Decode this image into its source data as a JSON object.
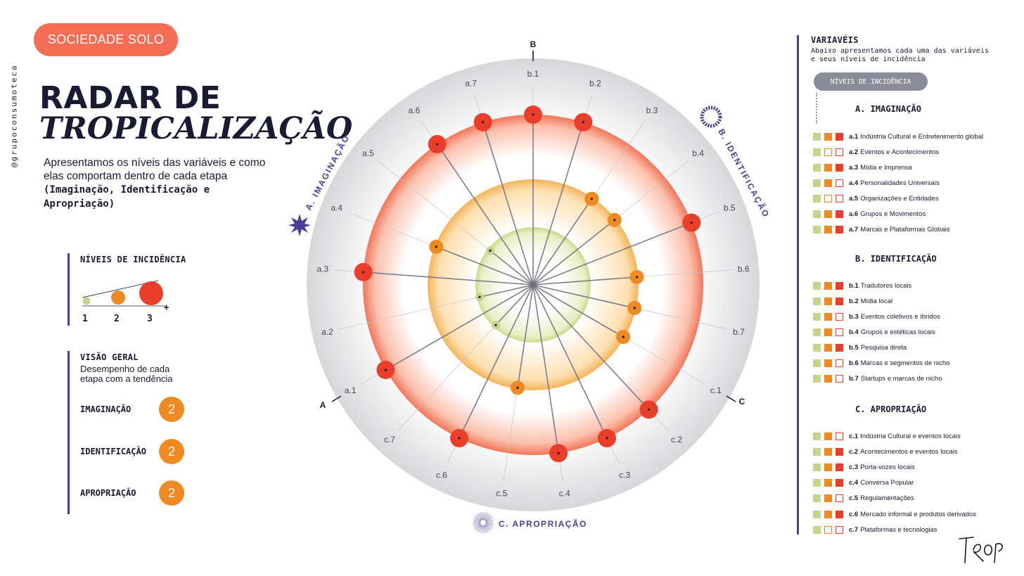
{
  "brand": "SOCIEDADE SOLO",
  "handle": "@grupoconsumoteca",
  "title_line1": "RADAR DE",
  "title_line2": "TROPICALIZAÇÃO",
  "intro_text": "Apresentamos os níveis das variáveis e como elas comportam dentro de cada etapa",
  "intro_bold": "(Imaginação, Identificação e Apropriação)",
  "legend": {
    "title": "NÍVEIS DE INCIDÊNCIA",
    "levels": [
      "1",
      "2",
      "3"
    ],
    "plus": "+"
  },
  "overview": {
    "title": "VISÃO GERAL",
    "subtitle": "Desempenho de cada etapa com a tendência",
    "items": [
      {
        "label": "IMAGINAÇÃO",
        "value": "2"
      },
      {
        "label": "IDENTIFICAÇÃO",
        "value": "2"
      },
      {
        "label": "APROPRIAÇÃO",
        "value": "2"
      }
    ]
  },
  "radar": {
    "axis_labels": {
      "A": "A",
      "B": "B",
      "C": "C"
    },
    "stage_labels": {
      "imaginacao": "A. IMAGINAÇÃO",
      "identificacao": "B. IDENTIFICAÇÃO",
      "apropriacao": "C. APROPRIAÇÃO"
    },
    "colors": {
      "level1": "#c6d38a",
      "level2": "#ef8a23",
      "level3": "#ea3d2a",
      "accent": "#4b3d97"
    }
  },
  "chart_data": {
    "type": "radar",
    "level_scale": [
      1,
      2,
      3
    ],
    "variables": [
      {
        "code": "b.1",
        "level": 3
      },
      {
        "code": "b.2",
        "level": 3
      },
      {
        "code": "b.3",
        "level": 2
      },
      {
        "code": "b.4",
        "level": 2
      },
      {
        "code": "b.5",
        "level": 3
      },
      {
        "code": "b.6",
        "level": 2
      },
      {
        "code": "b.7",
        "level": 2
      },
      {
        "code": "c.1",
        "level": 2
      },
      {
        "code": "c.2",
        "level": 3
      },
      {
        "code": "c.3",
        "level": 3
      },
      {
        "code": "c.4",
        "level": 3
      },
      {
        "code": "c.5",
        "level": 2
      },
      {
        "code": "c.6",
        "level": 3
      },
      {
        "code": "c.7",
        "level": 1
      },
      {
        "code": "a.1",
        "level": 3
      },
      {
        "code": "a.2",
        "level": 1
      },
      {
        "code": "a.3",
        "level": 3
      },
      {
        "code": "a.4",
        "level": 2
      },
      {
        "code": "a.5",
        "level": 1
      },
      {
        "code": "a.6",
        "level": 3
      },
      {
        "code": "a.7",
        "level": 3
      }
    ]
  },
  "variables_panel": {
    "title": "VARIAVÉIS",
    "subtitle": "Abaixo apresentamos cada uma das variáveis e seus níveis de incidência",
    "pill": "NÍVEIS DE INCIDÊNCIA",
    "sections": [
      {
        "title": "A. IMAGINAÇÃO",
        "items": [
          {
            "code": "a.1",
            "label": "Indústria Cultural e Entretenimento global",
            "level": 3
          },
          {
            "code": "a.2",
            "label": "Eventos e Acontecimentos",
            "level": 1
          },
          {
            "code": "a.3",
            "label": "Mídia e Imprensa",
            "level": 3
          },
          {
            "code": "a.4",
            "label": "Personalidades Universais",
            "level": 2
          },
          {
            "code": "a.5",
            "label": "Organizações e Entidades",
            "level": 1
          },
          {
            "code": "a.6",
            "label": "Grupos e Movimentos",
            "level": 3
          },
          {
            "code": "a.7",
            "label": "Marcas e Plataformas Globais",
            "level": 3
          }
        ]
      },
      {
        "title": "B. IDENTIFICAÇÃO",
        "items": [
          {
            "code": "b.1",
            "label": "Tradutores locais",
            "level": 3
          },
          {
            "code": "b.2",
            "label": "Mídia local",
            "level": 3
          },
          {
            "code": "b.3",
            "label": "Eventos coletivos e íbridos",
            "level": 2
          },
          {
            "code": "b.4",
            "label": "Grupos e estéticas locais",
            "level": 2
          },
          {
            "code": "b.5",
            "label": "Pesquisa direta",
            "level": 3
          },
          {
            "code": "b.6",
            "label": "Marcas e segmentos de nicho",
            "level": 2
          },
          {
            "code": "b.7",
            "label": "Startups e marcas de nicho",
            "level": 2
          }
        ]
      },
      {
        "title": "C. APROPRIAÇÃO",
        "items": [
          {
            "code": "c.1",
            "label": "Indústria Cultural e eventos locais",
            "level": 2
          },
          {
            "code": "c.2",
            "label": "Acontecimentos e eventos locais",
            "level": 3
          },
          {
            "code": "c.3",
            "label": "Porta-vozes locais",
            "level": 3
          },
          {
            "code": "c.4",
            "label": "Conversa Popular",
            "level": 3
          },
          {
            "code": "c.5",
            "label": "Regulamentações",
            "level": 2
          },
          {
            "code": "c.6",
            "label": "Mercado informal e produtos derivados",
            "level": 3
          },
          {
            "code": "c.7",
            "label": "Plataformas e tecnologias",
            "level": 1
          }
        ]
      }
    ]
  },
  "signature": "TROP"
}
